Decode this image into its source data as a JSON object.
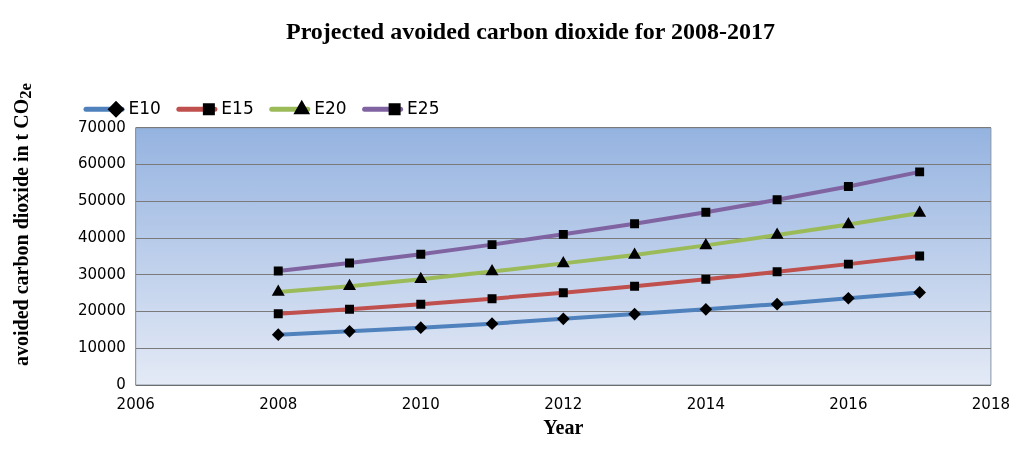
{
  "chart_data": {
    "type": "line",
    "title": "Projected avoided carbon dioxide for 2008-2017",
    "xlabel": "Year",
    "ylabel": "avoided carbon dioxide in t CO$_{2e}$",
    "x": [
      2008,
      2009,
      2010,
      2011,
      2012,
      2013,
      2014,
      2015,
      2016,
      2017
    ],
    "series": [
      {
        "name": "E10",
        "color": "#4f81bd",
        "marker": "diamond",
        "values": [
          13700,
          14600,
          15600,
          16700,
          18000,
          19300,
          20600,
          22000,
          23600,
          25200
        ]
      },
      {
        "name": "E15",
        "color": "#c0504d",
        "marker": "square",
        "values": [
          19400,
          20600,
          22000,
          23500,
          25100,
          26900,
          28800,
          30800,
          32900,
          35100
        ]
      },
      {
        "name": "E20",
        "color": "#9bbb59",
        "marker": "triangle",
        "values": [
          25300,
          26900,
          28800,
          30900,
          33100,
          35400,
          38000,
          40800,
          43700,
          46800
        ]
      },
      {
        "name": "E25",
        "color": "#8064a2",
        "marker": "square",
        "values": [
          31000,
          33200,
          35600,
          38200,
          41000,
          43900,
          47000,
          50400,
          54000,
          58000
        ]
      }
    ],
    "xlim": [
      2006,
      2018
    ],
    "xticks": [
      2006,
      2008,
      2010,
      2012,
      2014,
      2016,
      2018
    ],
    "ylim": [
      0,
      70000
    ],
    "yticks": [
      0,
      10000,
      20000,
      30000,
      40000,
      50000,
      60000,
      70000
    ],
    "grid": "y",
    "legend": "top left",
    "line_style": "solid"
  }
}
